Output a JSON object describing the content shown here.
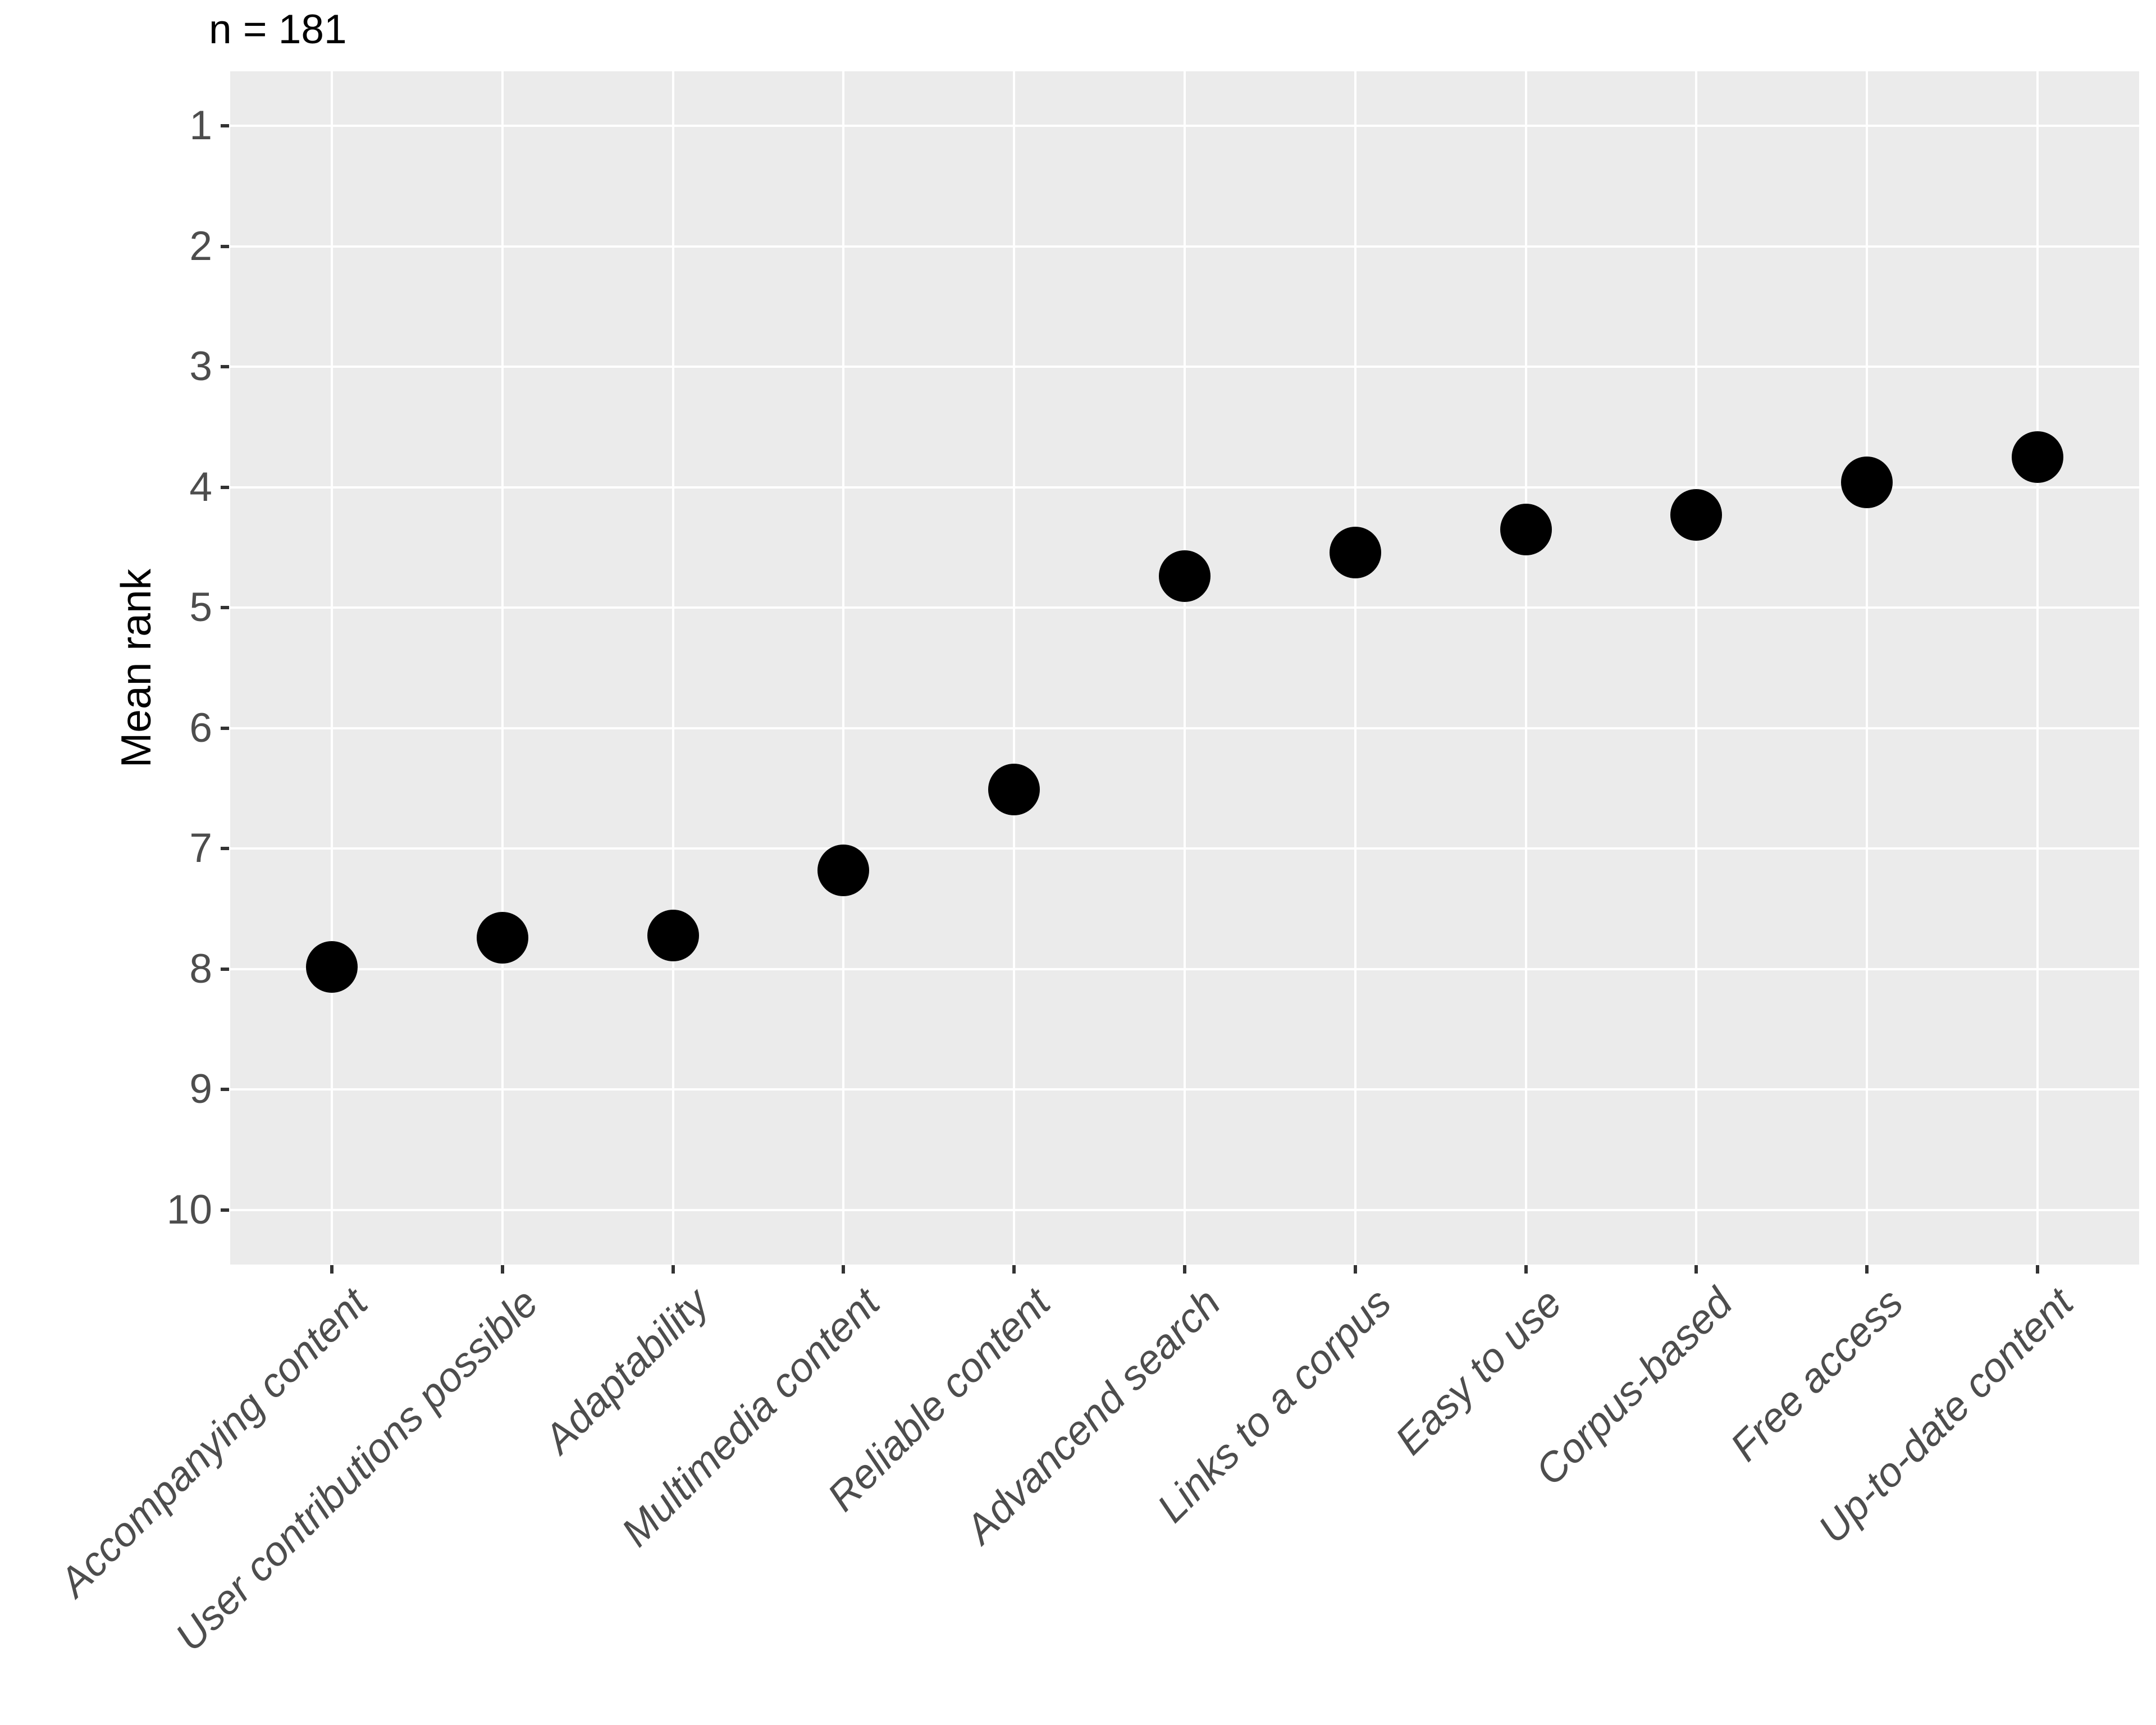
{
  "chart_data": {
    "type": "scatter",
    "title": "n = 181",
    "xlabel": "",
    "ylabel": "Mean rank",
    "categories": [
      "Accompanying content",
      "User contributions possible",
      "Adaptability",
      "Multimedia content",
      "Reliable content",
      "Advancend search",
      "Links to a corpus",
      "Easy to use",
      "Corpus-based",
      "Free access",
      "Up-to-date content"
    ],
    "values": [
      7.98,
      7.74,
      7.72,
      7.18,
      6.51,
      4.74,
      4.54,
      4.35,
      4.23,
      3.96,
      3.75
    ],
    "y_ticks": [
      1,
      2,
      3,
      4,
      5,
      6,
      7,
      8,
      9,
      10
    ],
    "y_axis_reversed": true,
    "ylim": [
      0.55,
      10.45
    ],
    "grid": "major only, white on gray panel",
    "legend_position": "none",
    "point_color": "#000000",
    "panel_background": "#EBEBEB",
    "grid_color": "#FFFFFF",
    "axis_text_color": "#4D4D4D",
    "title_color": "#000000",
    "x_label_style": "italic, rotated 45deg, right-anchored"
  }
}
